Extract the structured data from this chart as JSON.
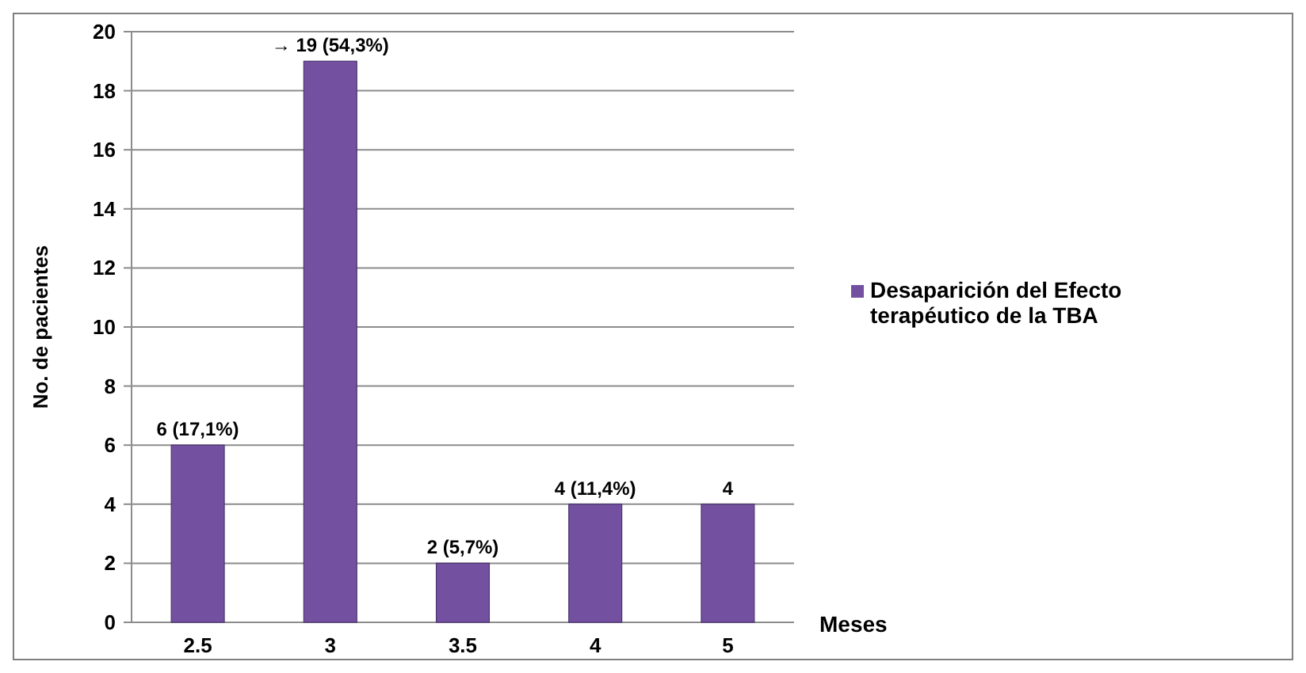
{
  "chart_data": {
    "type": "bar",
    "ylabel": "No. de pacientes",
    "xlabel": "Meses",
    "categories": [
      "2.5",
      "3",
      "3.5",
      "4",
      "5"
    ],
    "series": [
      {
        "name": "Desaparición del Efecto terapéutico de la TBA",
        "color": "#7351a0",
        "values": [
          6,
          19,
          2,
          4,
          4
        ],
        "value_labels": [
          "6 (17,1%)",
          "→ 19 (54,3%)",
          "2 (5,7%)",
          "4 (11,4%)",
          "4"
        ]
      }
    ],
    "ylim": [
      0,
      20
    ],
    "yticks": [
      0,
      2,
      4,
      6,
      8,
      10,
      12,
      14,
      16,
      18,
      20
    ],
    "grid": "y",
    "legend": "right"
  }
}
